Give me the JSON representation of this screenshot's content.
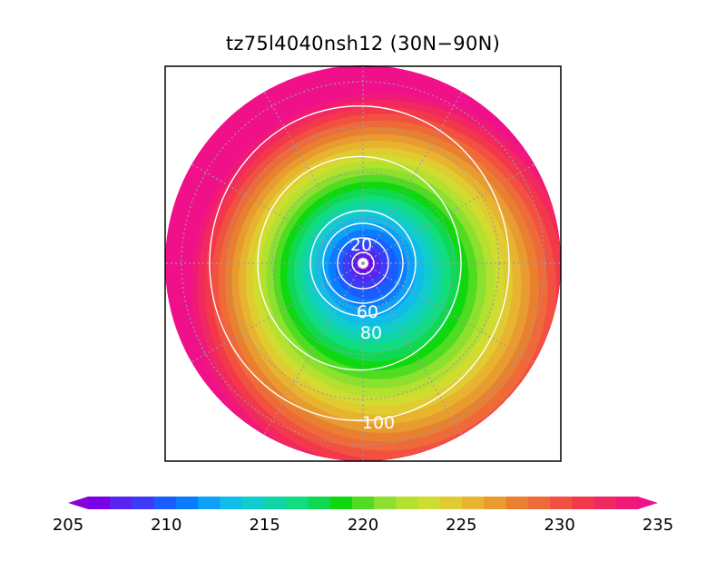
{
  "title": "tz75l4040nsh12 (30N−90N)",
  "chart_data": {
    "type": "heatmap",
    "projection": "polar stereographic",
    "region": "30N−90N",
    "colorbar": {
      "min": 205,
      "max": 235,
      "step": 1,
      "ticks": [
        205,
        210,
        215,
        220,
        225,
        230,
        235
      ],
      "colors": [
        "#8a00d4",
        "#7a00e6",
        "#5a22f0",
        "#3c3cf8",
        "#1a5cff",
        "#0a7cff",
        "#0ca0f8",
        "#10bce8",
        "#10cccc",
        "#10d4a8",
        "#10dc80",
        "#10d850",
        "#10d810",
        "#50dc20",
        "#8ce030",
        "#b4e030",
        "#d0dc30",
        "#e0cc30",
        "#e8b430",
        "#e89c30",
        "#e88030",
        "#ee6a38",
        "#f25040",
        "#f2384a",
        "#f22860",
        "#f01878",
        "#f0108a"
      ]
    },
    "contours": [
      {
        "value": 20,
        "label": "20"
      },
      {
        "value": 40,
        "label": ""
      },
      {
        "value": 60,
        "label": "60"
      },
      {
        "value": 80,
        "label": "80"
      },
      {
        "value": 100,
        "label": "100"
      },
      {
        "value": 120,
        "label": ""
      }
    ],
    "grid": true
  }
}
